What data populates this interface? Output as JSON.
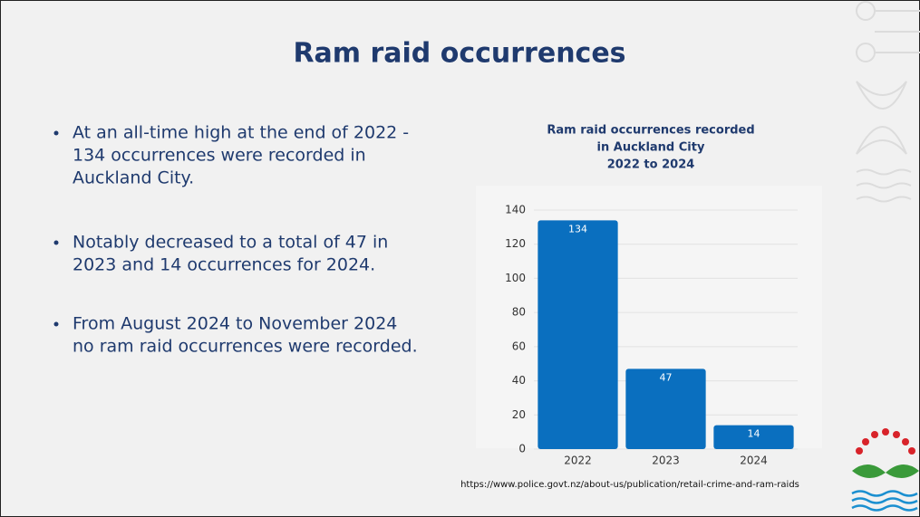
{
  "header": {
    "title": "Ram raid occurrences"
  },
  "bullets": [
    [
      "At an all-time high at the end of 2022 -",
      "134 occurrences were recorded in",
      "Auckland City."
    ],
    [
      "Notably decreased to a total of 47 in",
      "2023 and 14 occurrences for 2024."
    ],
    [
      "From August 2024 to November 2024",
      "no ram raid occurrences were recorded."
    ]
  ],
  "source": "https://www.police.govt.nz/about-us/publication/retail-crime-and-ram-raids",
  "chart_data": {
    "type": "bar",
    "title": [
      "Ram raid occurrences recorded",
      "in Auckland City",
      "2022 to 2024"
    ],
    "categories": [
      "2022",
      "2023",
      "2024"
    ],
    "values": [
      134,
      47,
      14
    ],
    "color": "#0a6fbf",
    "ylim": [
      0,
      140
    ],
    "yticks": [
      0,
      20,
      40,
      60,
      80,
      100,
      120,
      140
    ],
    "grid": true
  }
}
